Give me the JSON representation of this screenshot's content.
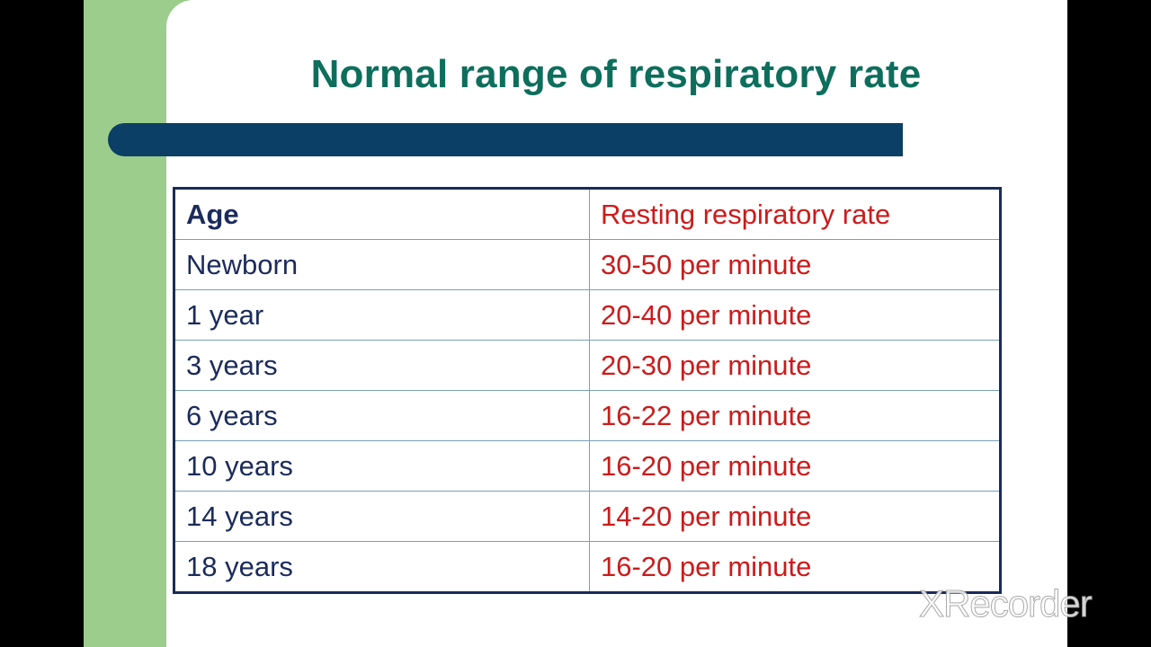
{
  "slide": {
    "title": "Normal range of respiratory rate"
  },
  "table": {
    "headers": {
      "age": "Age",
      "rate": "Resting respiratory rate"
    },
    "rows": [
      {
        "age": "Newborn",
        "rate": "30-50 per minute"
      },
      {
        "age": "1 year",
        "rate": "20-40 per minute"
      },
      {
        "age": "3 years",
        "rate": "20-30 per minute"
      },
      {
        "age": "6 years",
        "rate": "16-22 per minute"
      },
      {
        "age": "10 years",
        "rate": "16-20 per minute"
      },
      {
        "age": "14 years",
        "rate": "14-20 per minute"
      },
      {
        "age": "18 years",
        "rate": "16-20 per minute"
      }
    ]
  },
  "watermark": {
    "text": "XRecorder"
  },
  "colors": {
    "title": "#0d6e5c",
    "bar": "#0c3f66",
    "accent_green": "#9ccd8c",
    "age_text": "#1b2b5c",
    "rate_text": "#cc1b1b"
  }
}
